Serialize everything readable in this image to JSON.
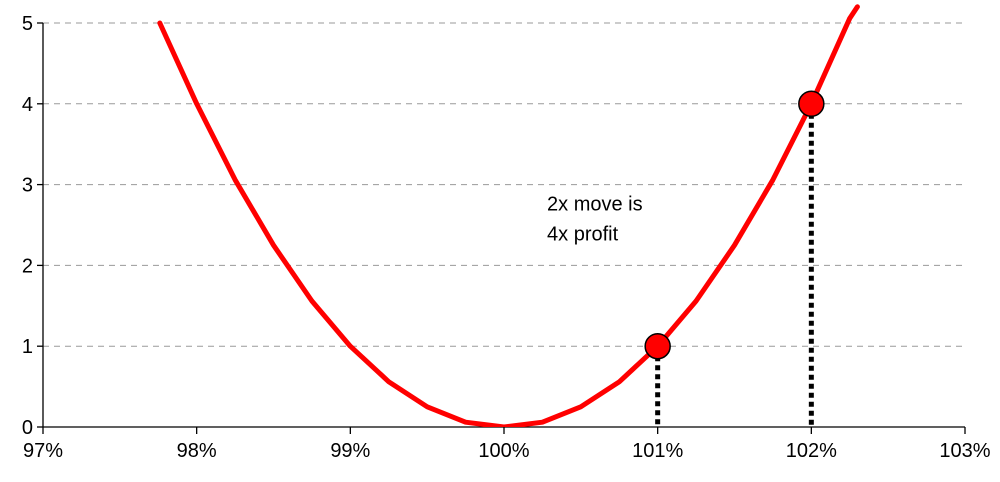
{
  "chart_data": {
    "type": "line",
    "title": "",
    "xlabel": "",
    "ylabel": "",
    "x_ticks": [
      "97%",
      "98%",
      "99%",
      "100%",
      "101%",
      "102%",
      "103%"
    ],
    "y_ticks": [
      "0",
      "1",
      "2",
      "3",
      "4",
      "5"
    ],
    "xlim": [
      97,
      103
    ],
    "ylim": [
      0,
      5
    ],
    "grid": "horizontal-dashed",
    "series": [
      {
        "x": [
          97.76,
          98.0,
          98.25,
          98.5,
          98.75,
          99.0,
          99.25,
          99.5,
          99.75,
          100.0,
          100.25,
          100.5,
          100.75,
          101.0,
          101.25,
          101.5,
          101.75,
          102.0,
          102.25,
          102.3
        ],
        "y": [
          5.0,
          4.0,
          3.06,
          2.25,
          1.56,
          1.0,
          0.56,
          0.25,
          0.06,
          0.0,
          0.06,
          0.25,
          0.56,
          1.0,
          1.56,
          2.25,
          3.06,
          4.0,
          5.06,
          5.2
        ]
      }
    ],
    "markers": [
      {
        "x": 101.0,
        "y": 1.0
      },
      {
        "x": 102.0,
        "y": 4.0
      }
    ],
    "annotation": {
      "lines": [
        "2x move is",
        "4x profit"
      ],
      "x": 100.28,
      "y": 2.68
    },
    "colors": {
      "curve": "#ff0000",
      "marker": "#ff0000",
      "drop_line": "#000000"
    }
  }
}
